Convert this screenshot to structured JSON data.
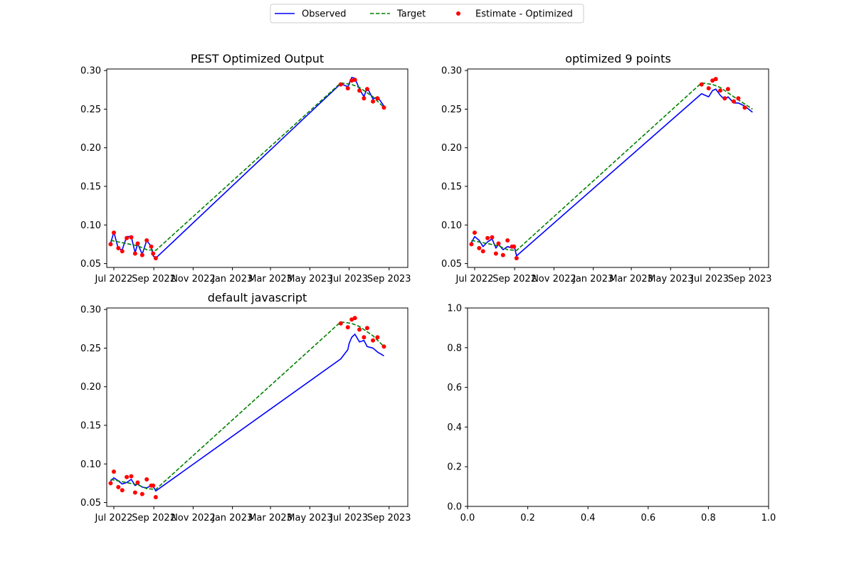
{
  "legend": {
    "entries": [
      "Observed",
      "Target",
      "Estimate - Optimized"
    ],
    "placement": "top-center"
  },
  "colors": {
    "observed": "#0000ff",
    "target": "#008000",
    "estimate": "#ff0000"
  },
  "chart_data": [
    {
      "type": "line",
      "title": "PEST Optimized Output",
      "x_type": "date",
      "xlim": [
        "2022-06-20",
        "2023-09-30"
      ],
      "ylim": [
        0.045,
        0.302
      ],
      "xticks": [
        "2022-07-01",
        "2022-09-01",
        "2022-11-01",
        "2023-01-01",
        "2023-03-01",
        "2023-05-01",
        "2023-07-01",
        "2023-09-01"
      ],
      "xtick_labels": [
        "Jul 2022",
        "Sep 2022",
        "Nov 2022",
        "Jan 2023",
        "Mar 2023",
        "May 2023",
        "Jul 2023",
        "Sep 2023"
      ],
      "yticks": [
        0.05,
        0.1,
        0.15,
        0.2,
        0.25,
        0.3
      ],
      "ytick_labels": [
        "0.05",
        "0.10",
        "0.15",
        "0.20",
        "0.25",
        "0.30"
      ],
      "series": [
        {
          "name": "Observed",
          "style": "solid",
          "x": [
            "2022-06-26",
            "2022-07-01",
            "2022-07-08",
            "2022-07-14",
            "2022-07-21",
            "2022-07-28",
            "2022-08-03",
            "2022-08-07",
            "2022-08-14",
            "2022-08-21",
            "2022-08-28",
            "2022-08-31",
            "2022-09-04",
            "2023-06-18",
            "2023-06-29",
            "2023-07-05",
            "2023-07-10",
            "2023-07-17",
            "2023-07-24",
            "2023-07-29",
            "2023-08-07",
            "2023-08-14",
            "2023-08-24"
          ],
          "y": [
            0.076,
            0.091,
            0.069,
            0.068,
            0.085,
            0.085,
            0.064,
            0.076,
            0.062,
            0.08,
            0.072,
            0.06,
            0.057,
            0.283,
            0.279,
            0.291,
            0.29,
            0.276,
            0.266,
            0.278,
            0.263,
            0.266,
            0.254
          ]
        },
        {
          "name": "Target",
          "style": "dashed",
          "x": [
            "2022-06-26",
            "2022-07-14",
            "2022-08-07",
            "2022-08-21",
            "2022-09-04",
            "2023-06-18",
            "2023-07-05",
            "2023-07-17",
            "2023-08-07",
            "2023-08-24"
          ],
          "y": [
            0.08,
            0.077,
            0.073,
            0.068,
            0.067,
            0.284,
            0.282,
            0.278,
            0.266,
            0.252
          ]
        },
        {
          "name": "Estimate - Optimized",
          "style": "scatter",
          "x": [
            "2022-06-26",
            "2022-07-01",
            "2022-07-08",
            "2022-07-14",
            "2022-07-21",
            "2022-07-28",
            "2022-08-03",
            "2022-08-07",
            "2022-08-14",
            "2022-08-21",
            "2022-08-28",
            "2022-08-31",
            "2022-09-04",
            "2023-06-18",
            "2023-06-29",
            "2023-07-05",
            "2023-07-10",
            "2023-07-17",
            "2023-07-24",
            "2023-07-29",
            "2023-08-07",
            "2023-08-14",
            "2023-08-24"
          ],
          "y": [
            0.075,
            0.09,
            0.07,
            0.066,
            0.083,
            0.084,
            0.063,
            0.076,
            0.061,
            0.08,
            0.072,
            0.063,
            0.057,
            0.282,
            0.277,
            0.287,
            0.288,
            0.274,
            0.264,
            0.276,
            0.26,
            0.264,
            0.252
          ]
        }
      ]
    },
    {
      "type": "line",
      "title": "optimized 9 points",
      "x_type": "date",
      "xlim": [
        "2022-06-20",
        "2023-09-30"
      ],
      "ylim": [
        0.045,
        0.302
      ],
      "xticks": [
        "2022-07-01",
        "2022-09-01",
        "2022-11-01",
        "2023-01-01",
        "2023-03-01",
        "2023-05-01",
        "2023-07-01",
        "2023-09-01"
      ],
      "xtick_labels": [
        "Jul 2022",
        "Sep 2022",
        "Nov 2022",
        "Jan 2023",
        "Mar 2023",
        "May 2023",
        "Jul 2023",
        "Sep 2023"
      ],
      "yticks": [
        0.05,
        0.1,
        0.15,
        0.2,
        0.25,
        0.3
      ],
      "ytick_labels": [
        "0.05",
        "0.10",
        "0.15",
        "0.20",
        "0.25",
        "0.30"
      ],
      "series": [
        {
          "name": "Observed",
          "style": "solid",
          "x": [
            "2022-06-26",
            "2022-07-01",
            "2022-07-08",
            "2022-07-14",
            "2022-07-21",
            "2022-07-28",
            "2022-08-03",
            "2022-08-07",
            "2022-08-14",
            "2022-08-21",
            "2022-08-28",
            "2022-08-31",
            "2022-09-04",
            "2023-06-18",
            "2023-06-29",
            "2023-07-05",
            "2023-07-10",
            "2023-07-17",
            "2023-07-24",
            "2023-07-29",
            "2023-08-07",
            "2023-08-14",
            "2023-08-24",
            "2023-09-05"
          ],
          "y": [
            0.077,
            0.085,
            0.08,
            0.072,
            0.078,
            0.082,
            0.07,
            0.075,
            0.068,
            0.072,
            0.07,
            0.074,
            0.06,
            0.27,
            0.266,
            0.274,
            0.276,
            0.268,
            0.262,
            0.266,
            0.258,
            0.258,
            0.254,
            0.246
          ]
        },
        {
          "name": "Target",
          "style": "dashed",
          "x": [
            "2022-06-26",
            "2022-07-14",
            "2022-08-07",
            "2022-08-21",
            "2022-09-04",
            "2023-06-18",
            "2023-07-05",
            "2023-07-17",
            "2023-08-07",
            "2023-09-05"
          ],
          "y": [
            0.08,
            0.077,
            0.073,
            0.068,
            0.067,
            0.284,
            0.282,
            0.278,
            0.266,
            0.25
          ]
        },
        {
          "name": "Estimate - Optimized",
          "style": "scatter",
          "x": [
            "2022-06-26",
            "2022-07-01",
            "2022-07-08",
            "2022-07-14",
            "2022-07-21",
            "2022-07-28",
            "2022-08-03",
            "2022-08-07",
            "2022-08-14",
            "2022-08-21",
            "2022-08-28",
            "2022-08-31",
            "2022-09-04",
            "2023-06-18",
            "2023-06-29",
            "2023-07-05",
            "2023-07-10",
            "2023-07-17",
            "2023-07-24",
            "2023-07-29",
            "2023-08-07",
            "2023-08-14",
            "2023-08-24"
          ],
          "y": [
            0.075,
            0.09,
            0.07,
            0.066,
            0.083,
            0.084,
            0.063,
            0.076,
            0.061,
            0.08,
            0.072,
            0.072,
            0.057,
            0.282,
            0.277,
            0.287,
            0.289,
            0.274,
            0.264,
            0.276,
            0.26,
            0.264,
            0.252
          ]
        }
      ]
    },
    {
      "type": "line",
      "title": "default javascript",
      "x_type": "date",
      "xlim": [
        "2022-06-20",
        "2023-09-30"
      ],
      "ylim": [
        0.045,
        0.302
      ],
      "xticks": [
        "2022-07-01",
        "2022-09-01",
        "2022-11-01",
        "2023-01-01",
        "2023-03-01",
        "2023-05-01",
        "2023-07-01",
        "2023-09-01"
      ],
      "xtick_labels": [
        "Jul 2022",
        "Sep 2022",
        "Nov 2022",
        "Jan 2023",
        "Mar 2023",
        "May 2023",
        "Jul 2023",
        "Sep 2023"
      ],
      "yticks": [
        0.05,
        0.1,
        0.15,
        0.2,
        0.25,
        0.3
      ],
      "ytick_labels": [
        "0.05",
        "0.10",
        "0.15",
        "0.20",
        "0.25",
        "0.30"
      ],
      "series": [
        {
          "name": "Observed",
          "style": "solid",
          "x": [
            "2022-06-26",
            "2022-07-01",
            "2022-07-08",
            "2022-07-14",
            "2022-07-21",
            "2022-07-28",
            "2022-08-03",
            "2022-08-07",
            "2022-08-14",
            "2022-08-21",
            "2022-08-28",
            "2022-08-31",
            "2022-09-04",
            "2023-06-18",
            "2023-06-29",
            "2023-07-01",
            "2023-07-05",
            "2023-07-10",
            "2023-07-17",
            "2023-07-24",
            "2023-07-29",
            "2023-08-07",
            "2023-08-14",
            "2023-08-24"
          ],
          "y": [
            0.078,
            0.082,
            0.078,
            0.074,
            0.076,
            0.08,
            0.072,
            0.074,
            0.07,
            0.069,
            0.072,
            0.071,
            0.065,
            0.236,
            0.248,
            0.256,
            0.264,
            0.268,
            0.258,
            0.26,
            0.252,
            0.25,
            0.245,
            0.24
          ]
        },
        {
          "name": "Target",
          "style": "dashed",
          "x": [
            "2022-06-26",
            "2022-07-14",
            "2022-08-07",
            "2022-08-21",
            "2022-09-04",
            "2023-06-18",
            "2023-07-05",
            "2023-07-17",
            "2023-08-07",
            "2023-08-24"
          ],
          "y": [
            0.08,
            0.077,
            0.073,
            0.068,
            0.067,
            0.284,
            0.282,
            0.278,
            0.266,
            0.252
          ]
        },
        {
          "name": "Estimate - Optimized",
          "style": "scatter",
          "x": [
            "2022-06-26",
            "2022-07-01",
            "2022-07-08",
            "2022-07-14",
            "2022-07-21",
            "2022-07-28",
            "2022-08-03",
            "2022-08-07",
            "2022-08-14",
            "2022-08-21",
            "2022-08-28",
            "2022-08-31",
            "2022-09-04",
            "2023-06-18",
            "2023-06-29",
            "2023-07-05",
            "2023-07-10",
            "2023-07-17",
            "2023-07-24",
            "2023-07-29",
            "2023-08-07",
            "2023-08-14",
            "2023-08-24"
          ],
          "y": [
            0.075,
            0.09,
            0.07,
            0.066,
            0.083,
            0.084,
            0.063,
            0.076,
            0.061,
            0.08,
            0.072,
            0.072,
            0.057,
            0.282,
            0.277,
            0.287,
            0.289,
            0.274,
            0.264,
            0.276,
            0.26,
            0.264,
            0.252
          ]
        }
      ]
    },
    {
      "type": "line",
      "title": "",
      "x_type": "number",
      "xlim": [
        0,
        1
      ],
      "ylim": [
        0,
        1
      ],
      "xticks": [
        0,
        0.2,
        0.4,
        0.6,
        0.8,
        1.0
      ],
      "xtick_labels": [
        "0.0",
        "0.2",
        "0.4",
        "0.6",
        "0.8",
        "1.0"
      ],
      "yticks": [
        0,
        0.2,
        0.4,
        0.6,
        0.8,
        1.0
      ],
      "ytick_labels": [
        "0.0",
        "0.2",
        "0.4",
        "0.6",
        "0.8",
        "1.0"
      ],
      "series": []
    }
  ]
}
